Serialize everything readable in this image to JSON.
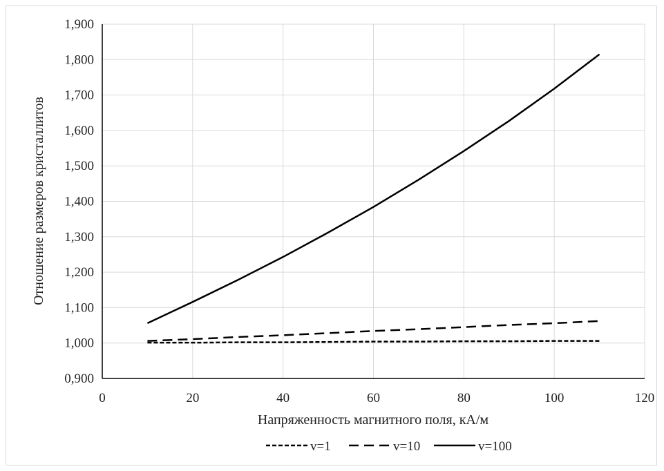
{
  "chart_data": {
    "type": "line",
    "xlabel": "Напряженность магнитного поля, кА/м",
    "ylabel": "Отношение размеров кристаллитов",
    "xlim": [
      0,
      120
    ],
    "ylim": [
      0.9,
      1.9
    ],
    "x_ticks": [
      "0",
      "20",
      "40",
      "60",
      "80",
      "100",
      "120"
    ],
    "y_ticks": [
      "0,900",
      "1,000",
      "1,100",
      "1,200",
      "1,300",
      "1,400",
      "1,500",
      "1,600",
      "1,700",
      "1,800",
      "1,900"
    ],
    "grid": true,
    "legend_position": "bottom",
    "series": [
      {
        "name": "v=1",
        "style": "dotted",
        "color": "#000000",
        "x": [
          10,
          20,
          30,
          40,
          50,
          60,
          70,
          80,
          90,
          100,
          110
        ],
        "y": [
          1.001,
          1.001,
          1.002,
          1.002,
          1.003,
          1.004,
          1.004,
          1.005,
          1.005,
          1.006,
          1.006
        ]
      },
      {
        "name": "v=10",
        "style": "dashed",
        "color": "#000000",
        "x": [
          10,
          20,
          30,
          40,
          50,
          60,
          70,
          80,
          90,
          100,
          110
        ],
        "y": [
          1.006,
          1.011,
          1.017,
          1.022,
          1.028,
          1.034,
          1.039,
          1.045,
          1.051,
          1.056,
          1.062
        ]
      },
      {
        "name": "v=100",
        "style": "solid",
        "color": "#000000",
        "x": [
          10,
          20,
          30,
          40,
          50,
          60,
          70,
          80,
          90,
          100,
          110
        ],
        "y": [
          1.056,
          1.116,
          1.178,
          1.243,
          1.312,
          1.384,
          1.461,
          1.542,
          1.627,
          1.718,
          1.815
        ]
      }
    ]
  }
}
